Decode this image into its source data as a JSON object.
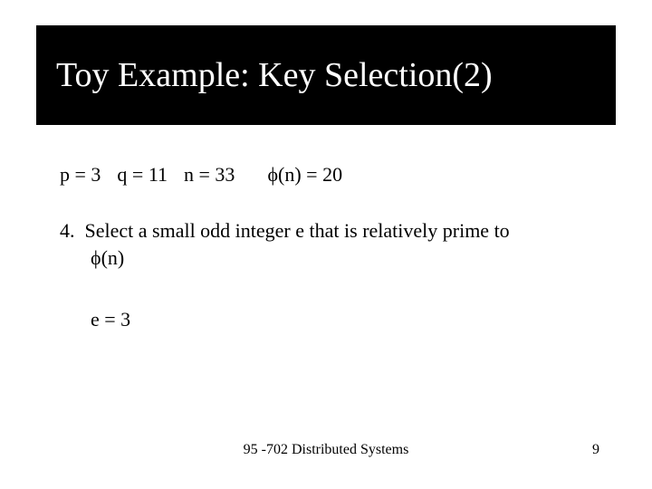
{
  "colors": {
    "background": "#ffffff",
    "title_band_bg": "#000000",
    "title_text": "#ffffff",
    "body_text": "#000000"
  },
  "typography": {
    "font_family": "Times New Roman, serif",
    "title_fontsize_pt": 28,
    "body_fontsize_pt": 17,
    "footer_fontsize_pt": 12
  },
  "title": "Toy Example: Key Selection(2)",
  "values": {
    "p": "p = 3",
    "q": "q = 11",
    "n": "n = 33",
    "phi": "ϕ(n)  = 20"
  },
  "step": {
    "number": "4.",
    "text_line1": "Select a small odd integer e that is relatively prime to",
    "text_line2": "ϕ(n)"
  },
  "result": "e = 3",
  "footer": {
    "center": "95 -702 Distributed Systems",
    "page": "9"
  }
}
